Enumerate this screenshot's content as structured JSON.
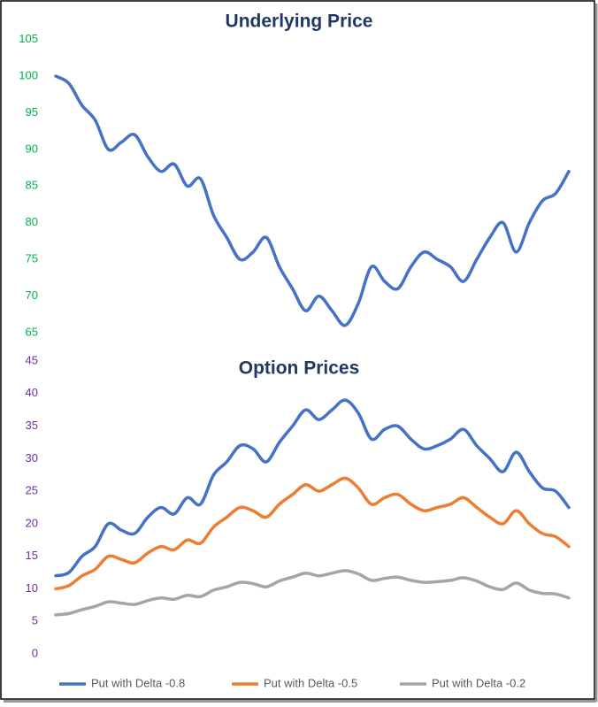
{
  "chart_data": [
    {
      "type": "line",
      "title": "Underlying Price",
      "ylim": [
        65,
        105
      ],
      "yticks": [
        65,
        70,
        75,
        80,
        85,
        90,
        95,
        100,
        105
      ],
      "tick_color": "#00b050",
      "grid": false,
      "series": [
        {
          "color": "#4472c4",
          "values": [
            100,
            99,
            96,
            94,
            90,
            91,
            92,
            89,
            87,
            88,
            85,
            86,
            81,
            78,
            75,
            76,
            78,
            74,
            71,
            68,
            70,
            68,
            66,
            69,
            74,
            72,
            71,
            74,
            76,
            75,
            74,
            72,
            75,
            78,
            80,
            76,
            80,
            83,
            84,
            87
          ]
        }
      ]
    },
    {
      "type": "line",
      "title": "Option Prices",
      "ylim": [
        0,
        45
      ],
      "yticks": [
        0,
        5,
        10,
        15,
        20,
        25,
        30,
        35,
        40,
        45
      ],
      "tick_color": "#7030a0",
      "grid": false,
      "legend": "bottom",
      "series": [
        {
          "name": "Put with Delta -0.8",
          "color": "#4472c4",
          "values": [
            12,
            12.5,
            15,
            16.5,
            20,
            19,
            18.5,
            21,
            22.5,
            21.5,
            24,
            23,
            27.5,
            29.5,
            32,
            31.5,
            29.5,
            32.5,
            35,
            37.5,
            36,
            37.5,
            39,
            37,
            33,
            34.5,
            35,
            33,
            31.5,
            32,
            33,
            34.5,
            32,
            30,
            28,
            31,
            28,
            25.5,
            25,
            22.5
          ]
        },
        {
          "name": "Put with Delta -0.5",
          "color": "#ed7d31",
          "values": [
            10,
            10.5,
            12,
            13,
            15,
            14.5,
            14,
            15.5,
            16.5,
            16,
            17.5,
            17,
            19.5,
            21,
            22.5,
            22,
            21,
            23,
            24.5,
            26,
            25,
            26,
            27,
            25.5,
            23,
            24,
            24.5,
            23,
            22,
            22.5,
            23,
            24,
            22.5,
            21,
            20,
            22,
            20,
            18.5,
            18,
            16.5
          ]
        },
        {
          "name": "Put with Delta -0.2",
          "color": "#a5a5a5",
          "values": [
            6,
            6.2,
            6.8,
            7.3,
            8,
            7.8,
            7.6,
            8.2,
            8.6,
            8.4,
            9,
            8.8,
            9.8,
            10.3,
            11,
            10.8,
            10.3,
            11.2,
            11.8,
            12.4,
            12,
            12.4,
            12.8,
            12.3,
            11.3,
            11.6,
            11.8,
            11.3,
            11,
            11.1,
            11.3,
            11.7,
            11.2,
            10.3,
            9.9,
            10.9,
            9.8,
            9.3,
            9.2,
            8.6
          ]
        }
      ]
    }
  ]
}
